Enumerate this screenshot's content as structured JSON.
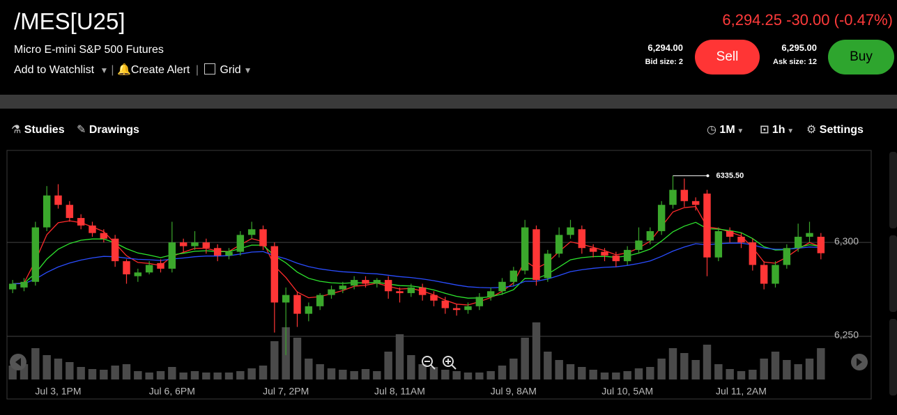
{
  "header": {
    "symbol": "/MES[U25]",
    "description": "Micro E-mini S&P 500 Futures",
    "actions": [
      "Add to Watchlist",
      "Create Alert",
      "Grid"
    ],
    "last": "6,294.25",
    "change": "-30.00",
    "change_pct": "(-0.47%)",
    "bid": "6,294.00",
    "bid_size": "Bid size: 2",
    "sell": "Sell",
    "ask": "6,295.00",
    "ask_size": "Ask size: 12",
    "buy": "Buy"
  },
  "toolbar": {
    "left": [
      "Studies",
      "Drawings"
    ],
    "right": [
      "1M",
      "1h",
      "Settings"
    ]
  },
  "chart_data": {
    "type": "candlestick",
    "categories": [
      null,
      null,
      null,
      null,
      "Jul 3, 1PM",
      null,
      null,
      null,
      null,
      null,
      null,
      null,
      null,
      null,
      "Jul 6, 6PM",
      null,
      null,
      null,
      null,
      null,
      null,
      null,
      null,
      null,
      "Jul 7, 2PM",
      null,
      null,
      null,
      null,
      null,
      null,
      null,
      null,
      null,
      "Jul 8, 11AM",
      null,
      null,
      null,
      null,
      null,
      null,
      null,
      null,
      null,
      "Jul 9, 8AM",
      null,
      null,
      null,
      null,
      null,
      null,
      null,
      null,
      null,
      "Jul 10, 5AM",
      null,
      null,
      null,
      null,
      null,
      null,
      null,
      null,
      null,
      "Jul 11, 2AM",
      null,
      null,
      null,
      null,
      null,
      null,
      null
    ],
    "open": [
      6275,
      6276,
      6279,
      6308,
      6325,
      6320,
      6313,
      6309,
      6305,
      6302,
      6290,
      6282,
      6284,
      6289,
      6286,
      6300,
      6298,
      6300,
      6297,
      6293,
      6295,
      6304,
      6307,
      6298,
      6268,
      6272,
      6262,
      6266,
      6272,
      6275,
      6277,
      6280,
      6278,
      6280,
      6274,
      6273,
      6276,
      6272,
      6269,
      6265,
      6264,
      6266,
      6271,
      6274,
      6279,
      6285,
      6307,
      6281,
      6294,
      6304,
      6307,
      6297,
      6295,
      6293,
      6290,
      6296,
      6301,
      6306,
      6320,
      6328,
      6322,
      6326,
      6292,
      6306,
      6303,
      6300,
      6288,
      6278,
      6288,
      6297,
      6303,
      6303
    ],
    "high": [
      6280,
      6281,
      6311,
      6330,
      6331,
      6322,
      6315,
      6311,
      6307,
      6304,
      6291,
      6286,
      6290,
      6291,
      6311,
      6302,
      6306,
      6302,
      6299,
      6297,
      6306,
      6311,
      6309,
      6300,
      6276,
      6274,
      6268,
      6273,
      6277,
      6279,
      6282,
      6282,
      6281,
      6282,
      6276,
      6278,
      6278,
      6274,
      6271,
      6267,
      6268,
      6273,
      6276,
      6281,
      6287,
      6312,
      6309,
      6296,
      6308,
      6312,
      6309,
      6299,
      6297,
      6295,
      6298,
      6308,
      6308,
      6322,
      6335.5,
      6334,
      6324,
      6328,
      6308,
      6308,
      6305,
      6302,
      6290,
      6290,
      6299,
      6310,
      6311,
      6305
    ],
    "low": [
      6273,
      6274,
      6277,
      6306,
      6318,
      6311,
      6307,
      6303,
      6300,
      6287,
      6278,
      6279,
      6283,
      6284,
      6284,
      6295,
      6296,
      6294,
      6290,
      6291,
      6293,
      6302,
      6296,
      6252,
      6240,
      6255,
      6258,
      6264,
      6270,
      6273,
      6275,
      6276,
      6276,
      6270,
      6268,
      6271,
      6269,
      6266,
      6262,
      6261,
      6262,
      6264,
      6269,
      6272,
      6277,
      6283,
      6277,
      6279,
      6292,
      6302,
      6294,
      6292,
      6290,
      6287,
      6288,
      6294,
      6299,
      6304,
      6318,
      6319,
      6317,
      6282,
      6290,
      6300,
      6297,
      6285,
      6275,
      6276,
      6286,
      6295,
      6300,
      6291
    ],
    "close": [
      6278,
      6279,
      6308,
      6325,
      6320,
      6313,
      6309,
      6305,
      6302,
      6290,
      6283,
      6284,
      6288,
      6286,
      6300,
      6298,
      6300,
      6297,
      6293,
      6295,
      6304,
      6307,
      6298,
      6268,
      6272,
      6262,
      6266,
      6272,
      6275,
      6277,
      6280,
      6278,
      6280,
      6274,
      6273,
      6276,
      6272,
      6269,
      6265,
      6264,
      6266,
      6271,
      6274,
      6279,
      6285,
      6308,
      6280,
      6294,
      6304,
      6308,
      6297,
      6295,
      6293,
      6290,
      6296,
      6301,
      6306,
      6320,
      6328,
      6322,
      6320,
      6292,
      6306,
      6303,
      6300,
      6288,
      6278,
      6288,
      6297,
      6303,
      6305,
      6294.25
    ],
    "volume": [
      20,
      22,
      45,
      35,
      30,
      25,
      18,
      15,
      14,
      20,
      22,
      12,
      10,
      12,
      18,
      10,
      12,
      10,
      10,
      10,
      12,
      16,
      20,
      55,
      75,
      60,
      30,
      22,
      16,
      14,
      12,
      15,
      12,
      40,
      65,
      35,
      22,
      18,
      14,
      12,
      10,
      10,
      12,
      20,
      30,
      60,
      82,
      40,
      28,
      22,
      18,
      14,
      10,
      10,
      12,
      16,
      18,
      30,
      45,
      38,
      28,
      50,
      22,
      15,
      12,
      14,
      30,
      40,
      28,
      22,
      30,
      45
    ],
    "ylim": [
      6227,
      6349
    ],
    "yticks": [
      {
        "value": 6300,
        "label": "6,300"
      },
      {
        "value": 6250,
        "label": "6,250"
      }
    ],
    "grid": true,
    "up_color": "#3ba82c",
    "down_color": "#ff3636",
    "volume_color": "#4a4a4a",
    "moving_averages": [
      {
        "period": 4,
        "color": "#ff2b2b"
      },
      {
        "period": 10,
        "color": "#2ee62e"
      },
      {
        "period": 24,
        "color": "#2a4dff"
      }
    ],
    "annotation": {
      "value": 6335.5,
      "label": "6335.50"
    }
  }
}
